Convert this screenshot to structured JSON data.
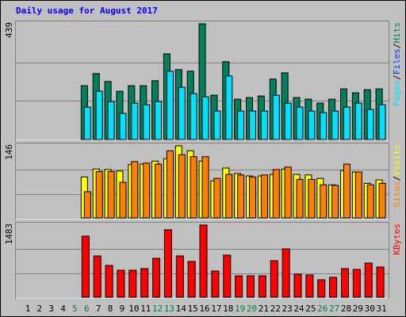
{
  "title": "Daily usage for August 2017",
  "label_separator": "/",
  "chart_data": [
    {
      "type": "bar",
      "ylim": [
        0,
        439
      ],
      "grid_divisions": 3,
      "series": [
        {
          "name": "Hits",
          "color": "#00805c",
          "values": [
            null,
            null,
            null,
            null,
            null,
            204,
            250,
            220,
            183,
            204,
            204,
            223,
            325,
            265,
            259,
            439,
            168,
            295,
            153,
            159,
            165,
            229,
            253,
            159,
            153,
            138,
            153,
            192,
            177,
            189,
            192
          ]
        },
        {
          "name": "Files",
          "color": "#0040ff",
          "values": [
            null,
            null,
            null,
            null,
            null,
            45,
            50,
            44,
            38,
            46,
            42,
            48,
            55,
            50,
            47,
            52,
            36,
            54,
            40,
            41,
            42,
            48,
            50,
            40,
            38,
            35,
            39,
            44,
            42,
            40,
            45
          ]
        },
        {
          "name": "Pages",
          "color": "#00e0ff",
          "values": [
            null,
            null,
            null,
            null,
            null,
            123,
            183,
            144,
            99,
            138,
            132,
            144,
            259,
            198,
            174,
            162,
            108,
            241,
            108,
            108,
            108,
            168,
            138,
            123,
            108,
            102,
            108,
            123,
            138,
            114,
            132
          ]
        }
      ]
    },
    {
      "type": "bar",
      "ylim": [
        0,
        146
      ],
      "grid_divisions": 3,
      "series": [
        {
          "name": "Visits",
          "color": "#ffff00",
          "values": [
            null,
            null,
            null,
            null,
            null,
            83,
            99,
            98,
            95,
            108,
            109,
            115,
            120,
            146,
            136,
            115,
            75,
            101,
            90,
            85,
            85,
            88,
            99,
            88,
            87,
            80,
            67,
            96,
            93,
            70,
            77
          ]
        },
        {
          "name": "Sites",
          "color": "#ff8000",
          "values": [
            null,
            null,
            null,
            null,
            null,
            53,
            94,
            94,
            72,
            114,
            111,
            109,
            136,
            128,
            124,
            124,
            80,
            88,
            87,
            83,
            87,
            98,
            103,
            78,
            78,
            67,
            66,
            109,
            93,
            67,
            70
          ]
        }
      ]
    },
    {
      "type": "bar",
      "ylim": [
        0,
        1483
      ],
      "grid_divisions": 3,
      "categories": [
        "1",
        "2",
        "3",
        "4",
        "5",
        "6",
        "7",
        "8",
        "9",
        "10",
        "11",
        "12",
        "13",
        "14",
        "15",
        "16",
        "17",
        "18",
        "19",
        "20",
        "21",
        "22",
        "23",
        "24",
        "25",
        "26",
        "27",
        "28",
        "29",
        "30",
        "31"
      ],
      "highlight_categories": [
        4,
        5,
        11,
        12,
        18,
        19,
        25,
        26
      ],
      "highlight_color": "#008040",
      "series": [
        {
          "name": "KBytes",
          "color": "#ff0000",
          "values": [
            null,
            null,
            null,
            null,
            null,
            1255,
            848,
            652,
            554,
            554,
            587,
            799,
            1386,
            848,
            734,
            1483,
            538,
            864,
            440,
            440,
            440,
            750,
            994,
            473,
            456,
            359,
            408,
            587,
            571,
            701,
            620
          ]
        }
      ]
    }
  ]
}
